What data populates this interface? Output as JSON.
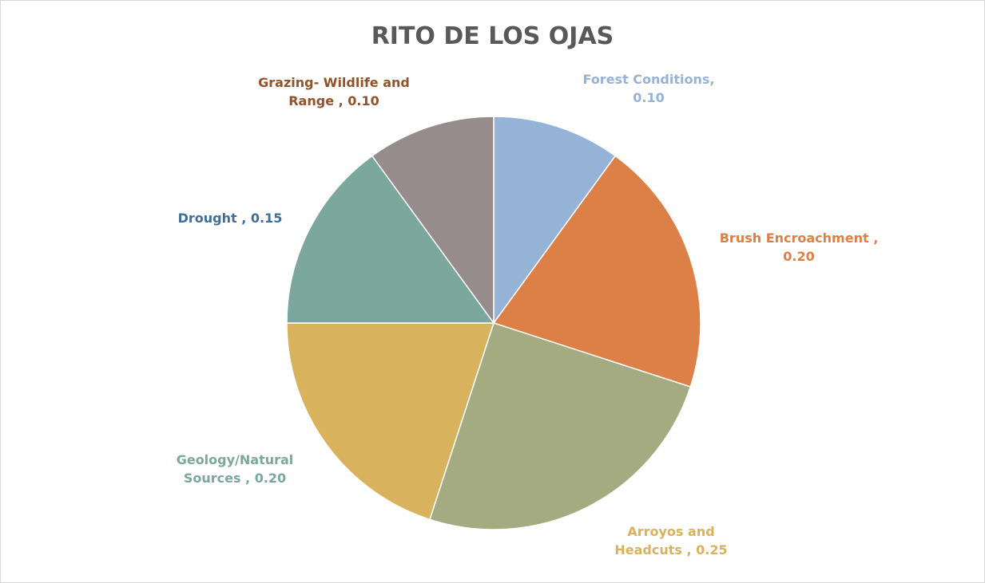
{
  "chart_data": {
    "type": "pie",
    "title": "RITO DE LOS OJAS",
    "categories": [
      "Forest Conditions,",
      "Brush Encroachment ,",
      "Arroyos and Headcuts ,",
      "Geology/Natural Sources ,",
      "Drought ,",
      "Grazing- Wildlife and Range ,"
    ],
    "values": [
      0.1,
      0.2,
      0.25,
      0.2,
      0.15,
      0.1
    ],
    "value_labels": [
      "0.10",
      "0.20",
      "0.25",
      "0.20",
      "0.15",
      "0.10"
    ],
    "colors": [
      "#95b3d7",
      "#dd8047",
      "#a5ab81",
      "#d8b25c",
      "#7ba79d",
      "#968c8c"
    ],
    "label_colors": [
      "#95b3d7",
      "#dd8047",
      "#d8b25c",
      "#7ba79d",
      "#3f6f98",
      "#94522a"
    ]
  }
}
